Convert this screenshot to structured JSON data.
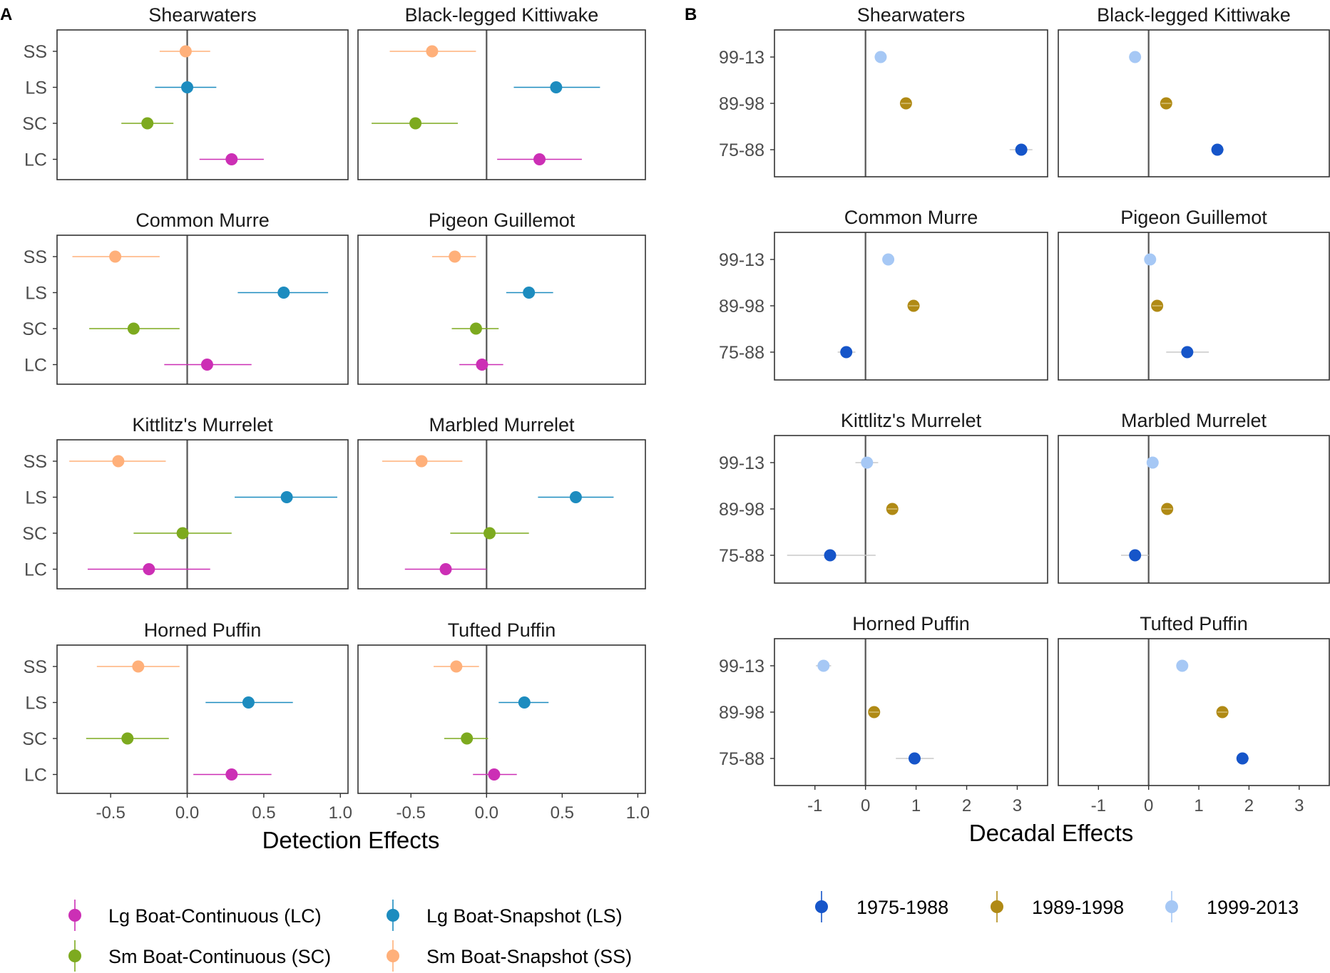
{
  "panels": {
    "A": {
      "letter": "A",
      "x_title": "Detection Effects",
      "x_ticks": [
        "-0.5",
        "0.0",
        "0.5",
        "1.0"
      ]
    },
    "B": {
      "letter": "B",
      "x_title": "Decadal Effects",
      "x_ticks": [
        "-1",
        "0",
        "1",
        "2",
        "3"
      ]
    }
  },
  "legend_A": [
    {
      "key": "LC",
      "label": "Lg Boat-Continuous (LC)"
    },
    {
      "key": "LS",
      "label": "Lg Boat-Snapshot (LS)"
    },
    {
      "key": "SC",
      "label": "Sm Boat-Continuous (SC)"
    },
    {
      "key": "SS",
      "label": "Sm Boat-Snapshot (SS)"
    }
  ],
  "legend_B": [
    {
      "key": "75-88",
      "label": "1975-1988"
    },
    {
      "key": "89-98",
      "label": "1989-1998"
    },
    {
      "key": "99-13",
      "label": "1999-2013"
    }
  ],
  "colors": {
    "LC": "#cc2fb5",
    "LS": "#1d8cbf",
    "SC": "#7daa1f",
    "SS": "#ffb07a",
    "75-88": "#1655c9",
    "89-98": "#b08a15",
    "99-13": "#a6c8f5",
    "zero_line": "#555555",
    "ci_gray": "#c8c8c8"
  },
  "chart_data": [
    {
      "type": "scatter",
      "panel": "A",
      "xlabel": "Detection Effects",
      "xlim": [
        -0.85,
        1.05
      ],
      "categories": [
        "SS",
        "LS",
        "SC",
        "LC"
      ],
      "facets": [
        {
          "title": "Shearwaters",
          "points": {
            "SS": {
              "est": -0.01,
              "lo": -0.18,
              "hi": 0.15
            },
            "LS": {
              "est": 0.0,
              "lo": -0.21,
              "hi": 0.19
            },
            "SC": {
              "est": -0.26,
              "lo": -0.43,
              "hi": -0.09
            },
            "LC": {
              "est": 0.29,
              "lo": 0.08,
              "hi": 0.5
            }
          }
        },
        {
          "title": "Black-legged Kittiwake",
          "points": {
            "SS": {
              "est": -0.36,
              "lo": -0.64,
              "hi": -0.07
            },
            "LS": {
              "est": 0.46,
              "lo": 0.18,
              "hi": 0.75
            },
            "SC": {
              "est": -0.47,
              "lo": -0.76,
              "hi": -0.19
            },
            "LC": {
              "est": 0.35,
              "lo": 0.07,
              "hi": 0.63
            }
          }
        },
        {
          "title": "Common Murre",
          "points": {
            "SS": {
              "est": -0.47,
              "lo": -0.75,
              "hi": -0.18
            },
            "LS": {
              "est": 0.63,
              "lo": 0.33,
              "hi": 0.92
            },
            "SC": {
              "est": -0.35,
              "lo": -0.64,
              "hi": -0.05
            },
            "LC": {
              "est": 0.13,
              "lo": -0.15,
              "hi": 0.42
            }
          }
        },
        {
          "title": "Pigeon Guillemot",
          "points": {
            "SS": {
              "est": -0.21,
              "lo": -0.36,
              "hi": -0.07
            },
            "LS": {
              "est": 0.28,
              "lo": 0.13,
              "hi": 0.44
            },
            "SC": {
              "est": -0.07,
              "lo": -0.23,
              "hi": 0.08
            },
            "LC": {
              "est": -0.03,
              "lo": -0.18,
              "hi": 0.11
            }
          }
        },
        {
          "title": "Kittlitz's Murrelet",
          "points": {
            "SS": {
              "est": -0.45,
              "lo": -0.77,
              "hi": -0.14
            },
            "LS": {
              "est": 0.65,
              "lo": 0.31,
              "hi": 0.98
            },
            "SC": {
              "est": -0.03,
              "lo": -0.35,
              "hi": 0.29
            },
            "LC": {
              "est": -0.25,
              "lo": -0.65,
              "hi": 0.15
            }
          }
        },
        {
          "title": "Marbled Murrelet",
          "points": {
            "SS": {
              "est": -0.43,
              "lo": -0.69,
              "hi": -0.16
            },
            "LS": {
              "est": 0.59,
              "lo": 0.34,
              "hi": 0.84
            },
            "SC": {
              "est": 0.02,
              "lo": -0.24,
              "hi": 0.28
            },
            "LC": {
              "est": -0.27,
              "lo": -0.54,
              "hi": 0.0
            }
          }
        },
        {
          "title": "Horned Puffin",
          "points": {
            "SS": {
              "est": -0.32,
              "lo": -0.59,
              "hi": -0.05
            },
            "LS": {
              "est": 0.4,
              "lo": 0.12,
              "hi": 0.69
            },
            "SC": {
              "est": -0.39,
              "lo": -0.66,
              "hi": -0.12
            },
            "LC": {
              "est": 0.29,
              "lo": 0.04,
              "hi": 0.55
            }
          }
        },
        {
          "title": "Tufted Puffin",
          "points": {
            "SS": {
              "est": -0.2,
              "lo": -0.35,
              "hi": -0.05
            },
            "LS": {
              "est": 0.25,
              "lo": 0.08,
              "hi": 0.41
            },
            "SC": {
              "est": -0.13,
              "lo": -0.28,
              "hi": 0.01
            },
            "LC": {
              "est": 0.05,
              "lo": -0.09,
              "hi": 0.2
            }
          }
        }
      ]
    },
    {
      "type": "scatter",
      "panel": "B",
      "xlabel": "Decadal Effects",
      "xlim": [
        -1.8,
        3.6
      ],
      "categories": [
        "99-13",
        "89-98",
        "75-88"
      ],
      "facets": [
        {
          "title": "Shearwaters",
          "points": {
            "99-13": {
              "est": 0.3,
              "lo": 0.2,
              "hi": 0.4
            },
            "89-98": {
              "est": 0.8,
              "lo": 0.7,
              "hi": 0.9
            },
            "75-88": {
              "est": 3.08,
              "lo": 2.85,
              "hi": 3.3
            }
          }
        },
        {
          "title": "Black-legged Kittiwake",
          "points": {
            "99-13": {
              "est": -0.27,
              "lo": -0.37,
              "hi": -0.17
            },
            "89-98": {
              "est": 0.35,
              "lo": 0.25,
              "hi": 0.45
            },
            "75-88": {
              "est": 1.37,
              "lo": 1.25,
              "hi": 1.5
            }
          }
        },
        {
          "title": "Common Murre",
          "points": {
            "99-13": {
              "est": 0.45,
              "lo": 0.35,
              "hi": 0.55
            },
            "89-98": {
              "est": 0.95,
              "lo": 0.85,
              "hi": 1.05
            },
            "75-88": {
              "est": -0.38,
              "lo": -0.55,
              "hi": -0.2
            }
          }
        },
        {
          "title": "Pigeon Guillemot",
          "points": {
            "99-13": {
              "est": 0.03,
              "lo": -0.07,
              "hi": 0.13
            },
            "89-98": {
              "est": 0.17,
              "lo": 0.07,
              "hi": 0.27
            },
            "75-88": {
              "est": 0.77,
              "lo": 0.35,
              "hi": 1.2
            }
          }
        },
        {
          "title": "Kittlitz's Murrelet",
          "points": {
            "99-13": {
              "est": 0.03,
              "lo": -0.2,
              "hi": 0.25
            },
            "89-98": {
              "est": 0.53,
              "lo": 0.43,
              "hi": 0.63
            },
            "75-88": {
              "est": -0.7,
              "lo": -1.55,
              "hi": 0.2
            }
          }
        },
        {
          "title": "Marbled Murrelet",
          "points": {
            "99-13": {
              "est": 0.08,
              "lo": -0.02,
              "hi": 0.18
            },
            "89-98": {
              "est": 0.37,
              "lo": 0.27,
              "hi": 0.47
            },
            "75-88": {
              "est": -0.27,
              "lo": -0.55,
              "hi": 0.0
            }
          }
        },
        {
          "title": "Horned Puffin",
          "points": {
            "99-13": {
              "est": -0.83,
              "lo": -0.98,
              "hi": -0.68
            },
            "89-98": {
              "est": 0.17,
              "lo": 0.07,
              "hi": 0.27
            },
            "75-88": {
              "est": 0.97,
              "lo": 0.6,
              "hi": 1.35
            }
          }
        },
        {
          "title": "Tufted Puffin",
          "points": {
            "99-13": {
              "est": 0.67,
              "lo": 0.57,
              "hi": 0.77
            },
            "89-98": {
              "est": 1.47,
              "lo": 1.37,
              "hi": 1.57
            },
            "75-88": {
              "est": 1.87,
              "lo": 1.75,
              "hi": 2.0
            }
          }
        }
      ]
    }
  ]
}
